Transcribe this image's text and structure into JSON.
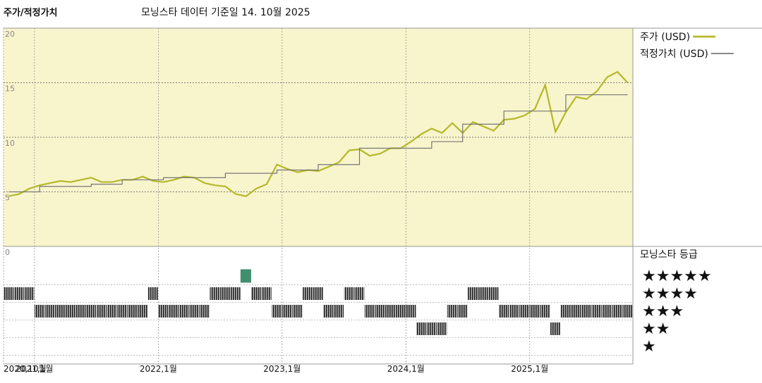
{
  "chart_data": {
    "type": "line",
    "title": "주가/적정가치",
    "subtitle": "모닝스타 데이터 기준일 14. 10월 2025",
    "x": [
      "2020-10",
      "2020-11",
      "2020-12",
      "2021-01",
      "2021-02",
      "2021-03",
      "2021-04",
      "2021-05",
      "2021-06",
      "2021-07",
      "2021-08",
      "2021-09",
      "2021-10",
      "2021-11",
      "2021-12",
      "2022-01",
      "2022-02",
      "2022-03",
      "2022-04",
      "2022-05",
      "2022-06",
      "2022-07",
      "2022-08",
      "2022-09",
      "2022-10",
      "2022-11",
      "2022-12",
      "2023-01",
      "2023-02",
      "2023-03",
      "2023-04",
      "2023-05",
      "2023-06",
      "2023-07",
      "2023-08",
      "2023-09",
      "2023-10",
      "2023-11",
      "2023-12",
      "2024-01",
      "2024-02",
      "2024-03",
      "2024-04",
      "2024-05",
      "2024-06",
      "2024-07",
      "2024-08",
      "2024-09",
      "2024-10",
      "2024-11",
      "2024-12",
      "2025-01",
      "2025-02",
      "2025-03",
      "2025-04",
      "2025-05",
      "2025-06",
      "2025-07",
      "2025-08",
      "2025-09",
      "2025-10"
    ],
    "series": [
      {
        "name": "주가 (USD)",
        "color": "#b5b82a",
        "width": 2.2,
        "step": false,
        "values": [
          4.6,
          4.8,
          5.3,
          5.6,
          5.8,
          6.0,
          5.9,
          6.1,
          6.3,
          5.9,
          5.9,
          6.1,
          6.1,
          6.4,
          6.0,
          5.9,
          6.1,
          6.4,
          6.3,
          5.8,
          5.6,
          5.5,
          4.8,
          4.6,
          5.3,
          5.7,
          7.5,
          7.1,
          6.8,
          7.0,
          6.9,
          7.3,
          7.7,
          8.8,
          8.9,
          8.3,
          8.5,
          9.0,
          9.0,
          9.6,
          10.3,
          10.8,
          10.4,
          11.3,
          10.4,
          11.4,
          11.0,
          10.6,
          11.6,
          11.7,
          12.0,
          12.6,
          14.8,
          10.5,
          12.3,
          13.7,
          13.5,
          14.2,
          15.5,
          16.0,
          15.0
        ]
      },
      {
        "name": "적정가치 (USD)",
        "color": "#777777",
        "width": 1.2,
        "step": true,
        "values": [
          5.0,
          5.0,
          5.0,
          5.5,
          5.5,
          5.5,
          5.5,
          5.5,
          5.7,
          5.7,
          5.7,
          6.1,
          6.1,
          6.1,
          6.1,
          6.3,
          6.3,
          6.3,
          6.3,
          6.3,
          6.3,
          6.7,
          6.7,
          6.7,
          6.7,
          6.7,
          7.0,
          7.0,
          7.0,
          7.0,
          7.5,
          7.5,
          7.5,
          7.5,
          9.0,
          9.0,
          9.0,
          9.0,
          9.0,
          9.0,
          9.0,
          9.6,
          9.6,
          9.6,
          11.2,
          11.2,
          11.2,
          11.2,
          12.4,
          12.4,
          12.4,
          12.4,
          12.4,
          12.4,
          13.9,
          13.9,
          13.9,
          13.9,
          13.9,
          13.9,
          13.9
        ]
      }
    ],
    "xlim": [
      "2020-10",
      "2025-11"
    ],
    "xticks": [
      {
        "value": "2020-10",
        "label": "2020,10월"
      },
      {
        "value": "2021-01",
        "label": "2021,1월"
      },
      {
        "value": "2022-01",
        "label": "2022,1월"
      },
      {
        "value": "2023-01",
        "label": "2023,1월"
      },
      {
        "value": "2024-01",
        "label": "2024,1월"
      },
      {
        "value": "2025-01",
        "label": "2025,1월"
      }
    ],
    "ylim": [
      0,
      20
    ],
    "yticks": [
      0,
      5,
      10,
      15,
      20
    ],
    "grid": true,
    "rating_title": "모닝스타 등급",
    "rating_labels": [
      "★★★★★",
      "★★★★",
      "★★★",
      "★★",
      "★"
    ],
    "rating_color": "#333333",
    "top_rating_color": "#3f8f6f",
    "ratings": [
      4,
      4,
      4,
      3,
      3,
      3,
      3,
      3,
      3,
      3,
      3,
      3,
      3,
      3,
      4,
      3,
      3,
      3,
      3,
      3,
      4,
      4,
      4,
      5,
      4,
      4,
      3,
      3,
      3,
      4,
      4,
      3,
      3,
      4,
      4,
      3,
      3,
      3,
      3,
      3,
      2,
      2,
      2,
      3,
      3,
      4,
      4,
      4,
      3,
      3,
      3,
      3,
      3,
      2,
      3,
      3,
      3,
      3,
      3,
      3,
      3
    ]
  }
}
